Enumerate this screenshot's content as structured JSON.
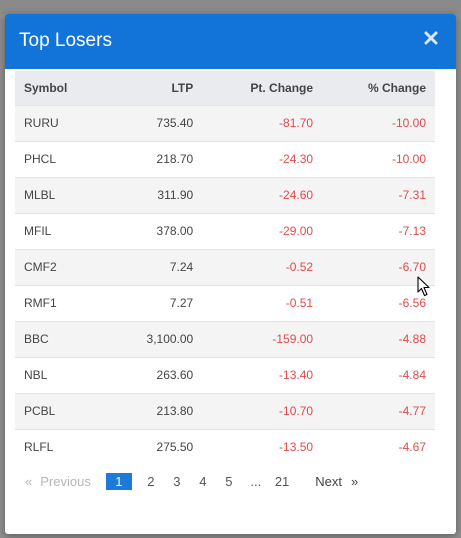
{
  "modal": {
    "title": "Top Losers"
  },
  "table": {
    "headers": {
      "symbol": "Symbol",
      "ltp": "LTP",
      "pt_change": "Pt. Change",
      "pct_change": "% Change"
    },
    "rows": [
      {
        "symbol": "RURU",
        "ltp": "735.40",
        "pt_change": "-81.70",
        "pct_change": "-10.00"
      },
      {
        "symbol": "PHCL",
        "ltp": "218.70",
        "pt_change": "-24.30",
        "pct_change": "-10.00"
      },
      {
        "symbol": "MLBL",
        "ltp": "311.90",
        "pt_change": "-24.60",
        "pct_change": "-7.31"
      },
      {
        "symbol": "MFIL",
        "ltp": "378.00",
        "pt_change": "-29.00",
        "pct_change": "-7.13"
      },
      {
        "symbol": "CMF2",
        "ltp": "7.24",
        "pt_change": "-0.52",
        "pct_change": "-6.70"
      },
      {
        "symbol": "RMF1",
        "ltp": "7.27",
        "pt_change": "-0.51",
        "pct_change": "-6.56"
      },
      {
        "symbol": "BBC",
        "ltp": "3,100.00",
        "pt_change": "-159.00",
        "pct_change": "-4.88"
      },
      {
        "symbol": "NBL",
        "ltp": "263.60",
        "pt_change": "-13.40",
        "pct_change": "-4.84"
      },
      {
        "symbol": "PCBL",
        "ltp": "213.80",
        "pt_change": "-10.70",
        "pct_change": "-4.77"
      },
      {
        "symbol": "RLFL",
        "ltp": "275.50",
        "pt_change": "-13.50",
        "pct_change": "-4.67"
      }
    ]
  },
  "pagination": {
    "prev_arrow": "«",
    "prev_label": "Previous",
    "pages": [
      "1",
      "2",
      "3",
      "4",
      "5"
    ],
    "ellipsis": "...",
    "last_page": "21",
    "next_label": "Next",
    "next_arrow": "»",
    "current_page": "1"
  },
  "colors": {
    "header_bg": "#1274d8",
    "negative": "#e04a4a",
    "active_page": "#1c7bd9"
  },
  "icons": {
    "close": "close-icon",
    "cursor": "mouse-pointer-icon"
  }
}
